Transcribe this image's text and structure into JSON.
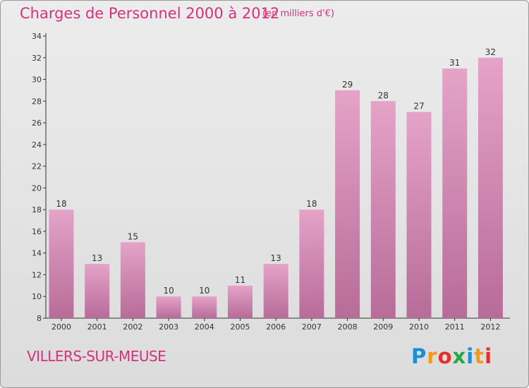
{
  "title": "Charges de Personnel 2000 à 2012",
  "subtitle": "(en milliers d'€)",
  "commune": "VILLERS-SUR-MEUSE",
  "logo": {
    "text": "Proxiti",
    "colors": [
      "#1a8fd6",
      "#f39a1e",
      "#e3302b",
      "#27a844",
      "#1a8fd6",
      "#f39a1e",
      "#e3302b"
    ]
  },
  "colors": {
    "bar_top": "#e5a3c8",
    "bar_bottom": "#b76c98",
    "text": "#d6307f",
    "axis": "#333333"
  },
  "chart_data": {
    "type": "bar",
    "categories": [
      "2000",
      "2001",
      "2002",
      "2003",
      "2004",
      "2005",
      "2006",
      "2007",
      "2008",
      "2009",
      "2010",
      "2011",
      "2012"
    ],
    "values": [
      18,
      13,
      15,
      10,
      10,
      11,
      13,
      18,
      29,
      28,
      27,
      31,
      32
    ],
    "ylim": [
      8,
      34
    ],
    "yticks": [
      8,
      10,
      12,
      14,
      16,
      18,
      20,
      22,
      24,
      26,
      28,
      30,
      32,
      34
    ],
    "grid": false,
    "legend": "none"
  }
}
